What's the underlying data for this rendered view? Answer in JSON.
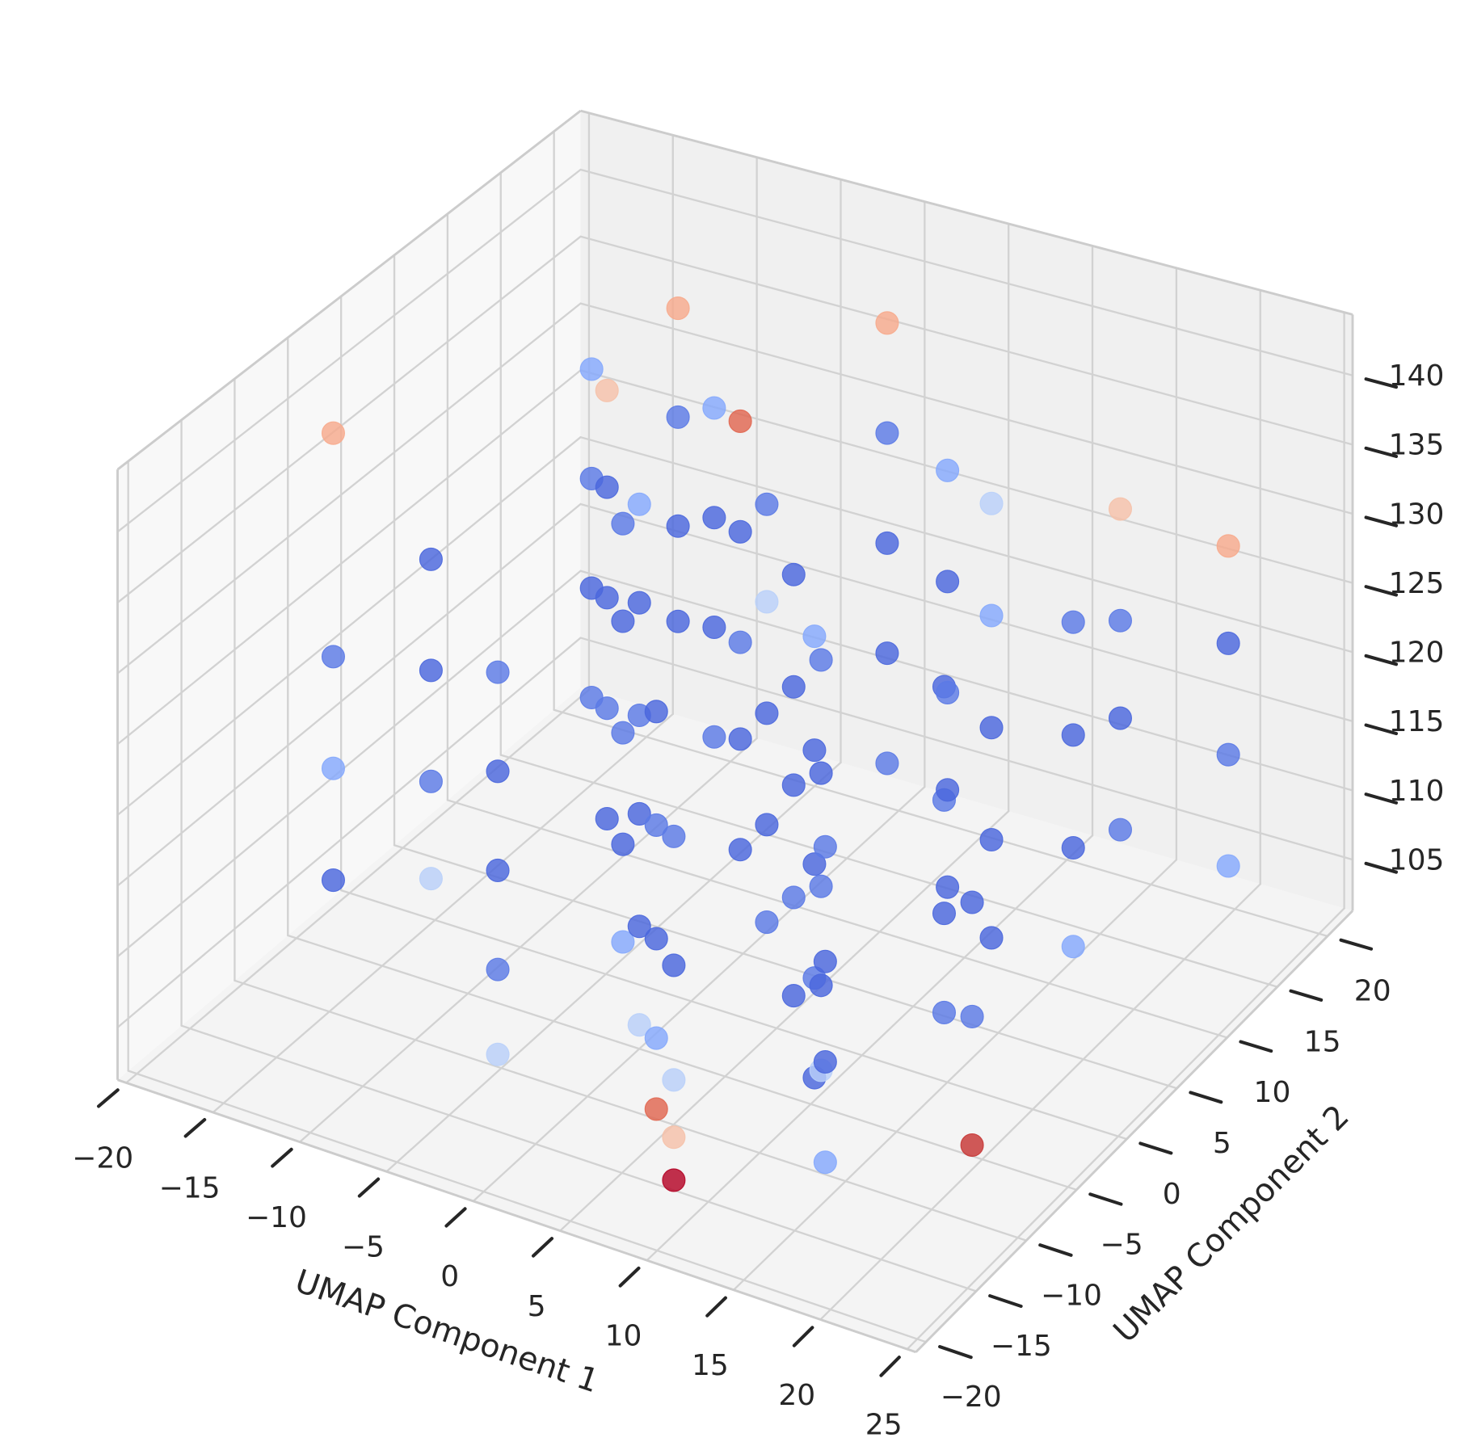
{
  "chart_data": {
    "type": "scatter3d",
    "x_label": "UMAP Component 1",
    "y_label": "UMAP Component 2",
    "xlim": [
      -20.5,
      25.5
    ],
    "ylim": [
      -21,
      22.5
    ],
    "zlim": [
      101.3,
      144.4
    ],
    "xticks": [
      {
        "value": -20,
        "label": "−20"
      },
      {
        "value": -15,
        "label": "−15"
      },
      {
        "value": -10,
        "label": "−10"
      },
      {
        "value": -5,
        "label": "−5"
      },
      0,
      5,
      10,
      15,
      20,
      25
    ],
    "yticks": [
      {
        "value": -20,
        "label": "−20"
      },
      {
        "value": -15,
        "label": "−15"
      },
      {
        "value": -10,
        "label": "−10"
      },
      {
        "value": -5,
        "label": "−5"
      },
      0,
      5,
      10,
      15,
      20
    ],
    "zticks": [
      105,
      110,
      115,
      120,
      125,
      130,
      135,
      140
    ],
    "grid": true,
    "points": [
      {
        "x": -12,
        "y": 10,
        "z": 112,
        "color": "#5b7ae5"
      },
      {
        "x": -12,
        "y": 10,
        "z": 120,
        "color": "#4a67dd"
      },
      {
        "x": -12,
        "y": 10,
        "z": 128,
        "color": "#5b7ae5"
      },
      {
        "x": -12,
        "y": 10,
        "z": 136,
        "color": "#85a8fc"
      },
      {
        "x": -8,
        "y": 5,
        "z": 108,
        "color": "#4a67dd"
      },
      {
        "x": -8,
        "y": 5,
        "z": 116,
        "color": "#5b7ae5"
      },
      {
        "x": -8,
        "y": 5,
        "z": 124,
        "color": "#4a67dd"
      },
      {
        "x": -8,
        "y": 5,
        "z": 132,
        "color": "#4a67dd"
      },
      {
        "x": -8,
        "y": 5,
        "z": 139,
        "color": "#f5c1a9"
      },
      {
        "x": -4,
        "y": 0,
        "z": 104,
        "color": "#85a8fc"
      },
      {
        "x": -4,
        "y": 0,
        "z": 111,
        "color": "#4a67dd"
      },
      {
        "x": -4,
        "y": 0,
        "z": 119,
        "color": "#5b7ae5"
      },
      {
        "x": -4,
        "y": 0,
        "z": 127,
        "color": "#4a67dd"
      },
      {
        "x": -4,
        "y": 0,
        "z": 134,
        "color": "#5b7ae5"
      },
      {
        "x": 0,
        "y": -5,
        "z": 103,
        "color": "#b9d0f9"
      },
      {
        "x": 0,
        "y": -5,
        "z": 110,
        "color": "#4a67dd"
      },
      {
        "x": 0,
        "y": -5,
        "z": 118,
        "color": "#4a67dd"
      },
      {
        "x": 0,
        "y": -5,
        "z": 125,
        "color": "#5b7ae5"
      },
      {
        "x": 0,
        "y": -5,
        "z": 133,
        "color": "#4a67dd"
      },
      {
        "x": 0,
        "y": -5,
        "z": 140,
        "color": "#85a8fc"
      },
      {
        "x": 4,
        "y": -10,
        "z": 102,
        "color": "#e16751"
      },
      {
        "x": 4,
        "y": -10,
        "z": 107,
        "color": "#85a8fc"
      },
      {
        "x": 4,
        "y": -10,
        "z": 114,
        "color": "#4a67dd"
      },
      {
        "x": 4,
        "y": -10,
        "z": 122,
        "color": "#5b7ae5"
      },
      {
        "x": 4,
        "y": -10,
        "z": 130,
        "color": "#4a67dd"
      },
      {
        "x": 8,
        "y": -15,
        "z": 102,
        "color": "#b40426"
      },
      {
        "x": 8,
        "y": -15,
        "z": 105,
        "color": "#f5c1a9"
      },
      {
        "x": 8,
        "y": -15,
        "z": 109,
        "color": "#b9d0f9"
      },
      {
        "x": 8,
        "y": -15,
        "z": 117,
        "color": "#4a67dd"
      },
      {
        "x": 8,
        "y": -15,
        "z": 126,
        "color": "#5b7ae5"
      },
      {
        "x": 12,
        "y": -8,
        "z": 106,
        "color": "#4a67dd"
      },
      {
        "x": 12,
        "y": -8,
        "z": 113,
        "color": "#5b7ae5"
      },
      {
        "x": 12,
        "y": -8,
        "z": 121,
        "color": "#4a67dd"
      },
      {
        "x": 12,
        "y": -8,
        "z": 129,
        "color": "#4a67dd"
      },
      {
        "x": 12,
        "y": -8,
        "z": 137,
        "color": "#85a8fc"
      },
      {
        "x": 16,
        "y": -2,
        "z": 108,
        "color": "#5b7ae5"
      },
      {
        "x": 16,
        "y": -2,
        "z": 115,
        "color": "#4a67dd"
      },
      {
        "x": 16,
        "y": -2,
        "z": 123,
        "color": "#5b7ae5"
      },
      {
        "x": 16,
        "y": -2,
        "z": 131,
        "color": "#4a67dd"
      },
      {
        "x": 20,
        "y": 4,
        "z": 110,
        "color": "#85a8fc"
      },
      {
        "x": 20,
        "y": 4,
        "z": 117,
        "color": "#4a67dd"
      },
      {
        "x": 20,
        "y": 4,
        "z": 125,
        "color": "#4a67dd"
      },
      {
        "x": 20,
        "y": 4,
        "z": 133,
        "color": "#5b7ae5"
      },
      {
        "x": -10,
        "y": 15,
        "z": 115,
        "color": "#4a67dd"
      },
      {
        "x": -10,
        "y": 15,
        "z": 122,
        "color": "#4a67dd"
      },
      {
        "x": -10,
        "y": 15,
        "z": 130,
        "color": "#5b7ae5"
      },
      {
        "x": -10,
        "y": 15,
        "z": 138,
        "color": "#f7aa8c"
      },
      {
        "x": -6,
        "y": 12,
        "z": 110,
        "color": "#5b7ae5"
      },
      {
        "x": -6,
        "y": 12,
        "z": 118,
        "color": "#4a67dd"
      },
      {
        "x": -6,
        "y": 12,
        "z": 126,
        "color": "#4a67dd"
      },
      {
        "x": -6,
        "y": 12,
        "z": 134,
        "color": "#85a8fc"
      },
      {
        "x": -2,
        "y": 8,
        "z": 106,
        "color": "#4a67dd"
      },
      {
        "x": -2,
        "y": 8,
        "z": 114,
        "color": "#4a67dd"
      },
      {
        "x": -2,
        "y": 8,
        "z": 121,
        "color": "#5b7ae5"
      },
      {
        "x": -2,
        "y": 8,
        "z": 129,
        "color": "#4a67dd"
      },
      {
        "x": -2,
        "y": 8,
        "z": 137,
        "color": "#e16751"
      },
      {
        "x": 2,
        "y": 4,
        "z": 105,
        "color": "#5b7ae5"
      },
      {
        "x": 2,
        "y": 4,
        "z": 112,
        "color": "#4a67dd"
      },
      {
        "x": 2,
        "y": 4,
        "z": 120,
        "color": "#4a67dd"
      },
      {
        "x": 2,
        "y": 4,
        "z": 128,
        "color": "#b9d0f9"
      },
      {
        "x": 2,
        "y": 4,
        "z": 135,
        "color": "#5b7ae5"
      },
      {
        "x": 6,
        "y": 0,
        "z": 104,
        "color": "#4a67dd"
      },
      {
        "x": 6,
        "y": 0,
        "z": 111,
        "color": "#5b7ae5"
      },
      {
        "x": 6,
        "y": 0,
        "z": 119,
        "color": "#4a67dd"
      },
      {
        "x": 6,
        "y": 0,
        "z": 126,
        "color": "#4a67dd"
      },
      {
        "x": 6,
        "y": 0,
        "z": 134,
        "color": "#4a67dd"
      },
      {
        "x": 10,
        "y": -4,
        "z": 103,
        "color": "#b9d0f9"
      },
      {
        "x": 10,
        "y": -4,
        "z": 109,
        "color": "#4a67dd"
      },
      {
        "x": 10,
        "y": -4,
        "z": 116,
        "color": "#5b7ae5"
      },
      {
        "x": 10,
        "y": -4,
        "z": 124,
        "color": "#4a67dd"
      },
      {
        "x": 10,
        "y": -4,
        "z": 132,
        "color": "#5b7ae5"
      },
      {
        "x": 14,
        "y": 6,
        "z": 107,
        "color": "#4a67dd"
      },
      {
        "x": 14,
        "y": 6,
        "z": 114,
        "color": "#4a67dd"
      },
      {
        "x": 14,
        "y": 6,
        "z": 122,
        "color": "#4a67dd"
      },
      {
        "x": 14,
        "y": 6,
        "z": 130,
        "color": "#85a8fc"
      },
      {
        "x": 14,
        "y": 6,
        "z": 138,
        "color": "#b9d0f9"
      },
      {
        "x": 18,
        "y": 12,
        "z": 112,
        "color": "#5b7ae5"
      },
      {
        "x": 18,
        "y": 12,
        "z": 120,
        "color": "#4a67dd"
      },
      {
        "x": 18,
        "y": 12,
        "z": 127,
        "color": "#5b7ae5"
      },
      {
        "x": 18,
        "y": 12,
        "z": 135,
        "color": "#f5c1a9"
      },
      {
        "x": 22,
        "y": 16,
        "z": 108,
        "color": "#85a8fc"
      },
      {
        "x": 22,
        "y": 16,
        "z": 116,
        "color": "#5b7ae5"
      },
      {
        "x": 22,
        "y": 16,
        "z": 124,
        "color": "#4a67dd"
      },
      {
        "x": 22,
        "y": 16,
        "z": 131,
        "color": "#f7aa8c"
      },
      {
        "x": -14,
        "y": -2,
        "z": 106,
        "color": "#b9d0f9"
      },
      {
        "x": -14,
        "y": -2,
        "z": 113,
        "color": "#5b7ae5"
      },
      {
        "x": -14,
        "y": -2,
        "z": 121,
        "color": "#4a67dd"
      },
      {
        "x": -14,
        "y": -2,
        "z": 129,
        "color": "#4a67dd"
      },
      {
        "x": -16,
        "y": -8,
        "z": 109,
        "color": "#4a67dd"
      },
      {
        "x": -16,
        "y": -8,
        "z": 117,
        "color": "#85a8fc"
      },
      {
        "x": -16,
        "y": -8,
        "z": 125,
        "color": "#5b7ae5"
      },
      {
        "x": -16,
        "y": -8,
        "z": 141,
        "color": "#f7aa8c"
      },
      {
        "x": 3,
        "y": 14,
        "z": 110,
        "color": "#5b7ae5"
      },
      {
        "x": 3,
        "y": 14,
        "z": 118,
        "color": "#4a67dd"
      },
      {
        "x": 3,
        "y": 14,
        "z": 126,
        "color": "#4a67dd"
      },
      {
        "x": 3,
        "y": 14,
        "z": 134,
        "color": "#5b7ae5"
      },
      {
        "x": 3,
        "y": 14,
        "z": 142,
        "color": "#f7aa8c"
      },
      {
        "x": 9,
        "y": 10,
        "z": 106,
        "color": "#4a67dd"
      },
      {
        "x": 9,
        "y": 10,
        "z": 113,
        "color": "#4a67dd"
      },
      {
        "x": 9,
        "y": 10,
        "z": 120,
        "color": "#5b7ae5"
      },
      {
        "x": 9,
        "y": 10,
        "z": 128,
        "color": "#4a67dd"
      },
      {
        "x": 9,
        "y": 10,
        "z": 136,
        "color": "#85a8fc"
      },
      {
        "x": 15,
        "y": -12,
        "z": 104,
        "color": "#85a8fc"
      },
      {
        "x": 15,
        "y": -12,
        "z": 111,
        "color": "#4a67dd"
      },
      {
        "x": 15,
        "y": -12,
        "z": 118,
        "color": "#4a67dd"
      },
      {
        "x": 15,
        "y": -12,
        "z": 126,
        "color": "#5b7ae5"
      },
      {
        "x": 20,
        "y": -6,
        "z": 103,
        "color": "#c73635"
      },
      {
        "x": 20,
        "y": -6,
        "z": 112,
        "color": "#5b7ae5"
      },
      {
        "x": 20,
        "y": -6,
        "z": 120,
        "color": "#4a67dd"
      },
      {
        "x": -4,
        "y": -12,
        "z": 104,
        "color": "#b9d0f9"
      },
      {
        "x": -4,
        "y": -12,
        "z": 110,
        "color": "#5b7ae5"
      },
      {
        "x": -4,
        "y": -12,
        "z": 117,
        "color": "#4a67dd"
      },
      {
        "x": -4,
        "y": -12,
        "z": 124,
        "color": "#4a67dd"
      },
      {
        "x": -4,
        "y": -12,
        "z": 131,
        "color": "#5b7ae5"
      }
    ]
  }
}
